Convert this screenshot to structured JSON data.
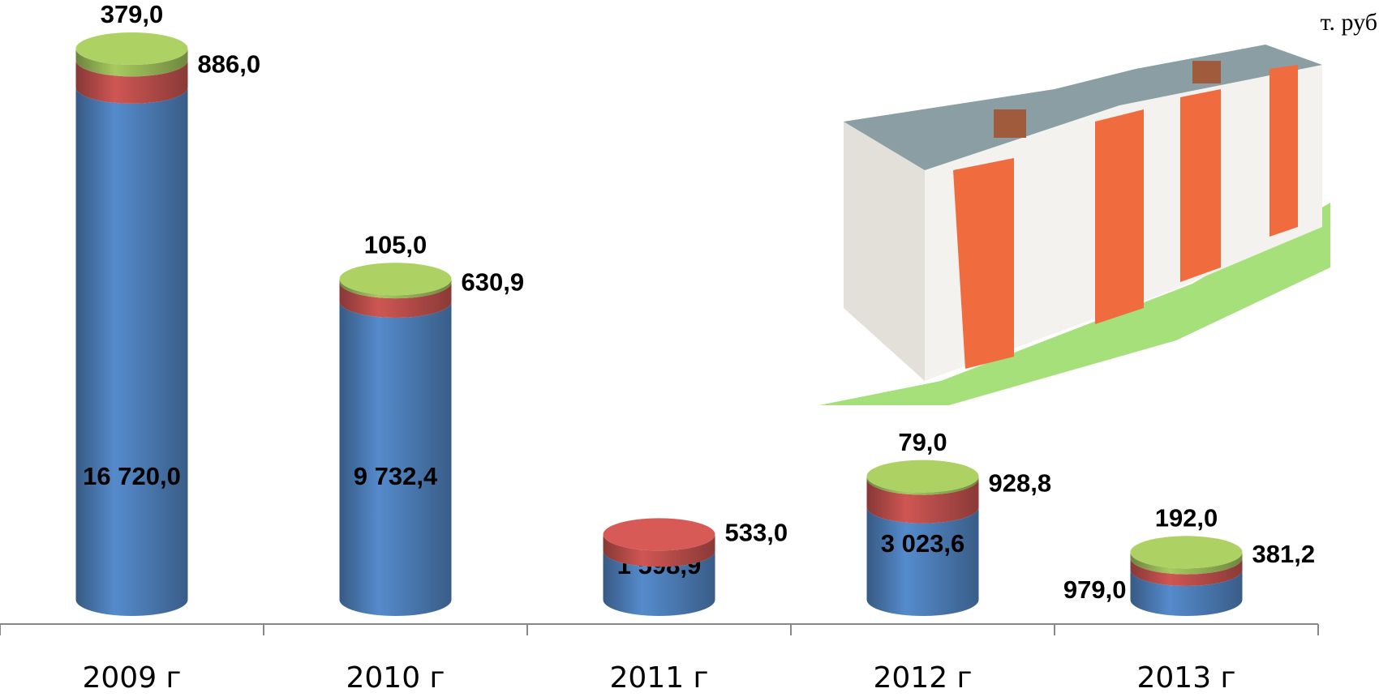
{
  "chart_data": {
    "type": "cylinder_stacked",
    "unit": "т. руб",
    "categories": [
      "2009 г",
      "2010 г",
      "2011 г",
      "2012 г",
      "2013 г"
    ],
    "series": [
      {
        "name": null,
        "color": "#4f81bd",
        "values": [
          16720.0,
          9732.4,
          1598.9,
          3023.6,
          979.0
        ],
        "value_labels": [
          "16 720,0",
          "9 732,4",
          "1 598,9",
          "3 023,6",
          "979,0"
        ]
      },
      {
        "name": null,
        "color": "#c0504d",
        "values": [
          886.0,
          630.9,
          533.0,
          928.8,
          381.2
        ],
        "value_labels": [
          "886,0",
          "630,9",
          "533,0",
          "928,8",
          "381,2"
        ]
      },
      {
        "name": null,
        "color": "#9bbb59",
        "values": [
          379.0,
          105.0,
          null,
          79.0,
          192.0
        ],
        "value_labels": [
          "379,0",
          "105,0",
          null,
          "79,0",
          "192,0"
        ]
      }
    ]
  }
}
